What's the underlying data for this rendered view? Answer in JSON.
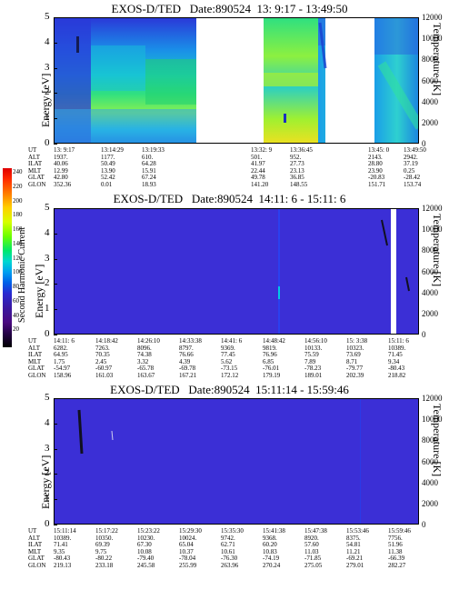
{
  "panels": [
    {
      "title": "EXOS-D/TED   Date:890524  13: 9:17 - 13:49:50",
      "ylabel": "Energy [eV]",
      "y2label": "Temperature [K]",
      "ephemeris_labels": [
        "UT",
        "ALT",
        "ILAT",
        "MLT",
        "GLAT",
        "GLON"
      ],
      "ephemeris_columns": [
        [
          "13: 9:17",
          "1937.",
          "40.06",
          "12.99",
          "42.80",
          "352.36"
        ],
        [
          "13:14:29",
          "1177.",
          "50.49",
          "13.90",
          "52.42",
          "0.01"
        ],
        [
          "13:19:33",
          "610.",
          "64.28",
          "15.91",
          "67.24",
          "18.93"
        ],
        [
          "13:32: 9",
          "501.",
          "41.97",
          "22.44",
          "49.78",
          "141.20"
        ],
        [
          "13:36:45",
          "952.",
          "27.73",
          "23.13",
          "36.85",
          "148.55"
        ],
        [
          "13:45: 0",
          "2143.",
          "28.80",
          "23.90",
          "-20.83",
          "151.71"
        ],
        [
          "13:49:50",
          "2942.",
          "37.19",
          "0.25",
          "-28.42",
          "153.74"
        ]
      ]
    },
    {
      "title": "EXOS-D/TED   Date:890524  14:11: 6 - 15:11: 6",
      "ylabel": "Energy [eV]",
      "y2label": "Temperature [K]",
      "ephemeris_labels": [
        "UT",
        "ALT",
        "ILAT",
        "MLT",
        "GLAT",
        "GLON"
      ],
      "ephemeris_columns": [
        [
          "14:11: 6",
          "6282.",
          "64.95",
          "1.75",
          "-54.97",
          "158.96"
        ],
        [
          "14:18:42",
          "7263.",
          "70.35",
          "2.45",
          "-60.97",
          "161.03"
        ],
        [
          "14:26:10",
          "8096.",
          "74.38",
          "3.32",
          "-65.78",
          "163.67"
        ],
        [
          "14:33:38",
          "8797.",
          "76.66",
          "4.39",
          "-69.78",
          "167.21"
        ],
        [
          "14:41: 6",
          "9369.",
          "77.45",
          "5.62",
          "-73.15",
          "172.12"
        ],
        [
          "14:48:42",
          "9819.",
          "76.96",
          "6.85",
          "-76.01",
          "179.19"
        ],
        [
          "14:56:10",
          "10133.",
          "75.59",
          "7.89",
          "-78.23",
          "189.01"
        ],
        [
          "15: 3:38",
          "10323.",
          "73.69",
          "8.71",
          "-79.77",
          "202.39"
        ],
        [
          "15:11: 6",
          "10389.",
          "71.45",
          "9.34",
          "-80.43",
          "218.82"
        ]
      ]
    },
    {
      "title": "EXOS-D/TED   Date:890524  15:11:14 - 15:59:46",
      "ylabel": "Energy [eV]",
      "y2label": "Temperature [K]",
      "ephemeris_labels": [
        "UT",
        "ALT",
        "ILAT",
        "MLT",
        "GLAT",
        "GLON"
      ],
      "ephemeris_columns": [
        [
          "15:11:14",
          "10389.",
          "71.41",
          "9.35",
          "-80.43",
          "219.13"
        ],
        [
          "15:17:22",
          "10350.",
          "69.39",
          "9.75",
          "-80.22",
          "233.18"
        ],
        [
          "15:23:22",
          "10230.",
          "67.30",
          "10.08",
          "-79.40",
          "245.58"
        ],
        [
          "15:29:30",
          "10024.",
          "65.04",
          "10.37",
          "-78.04",
          "255.99"
        ],
        [
          "15:35:30",
          "9742.",
          "62.71",
          "10.61",
          "-76.30",
          "263.96"
        ],
        [
          "15:41:38",
          "9368.",
          "60.20",
          "10.83",
          "-74.19",
          "270.24"
        ],
        [
          "15:47:38",
          "8920.",
          "57.60",
          "11.03",
          "-71.85",
          "275.05"
        ],
        [
          "15:53:46",
          "8375.",
          "54.81",
          "11.21",
          "-69.21",
          "279.01"
        ],
        [
          "15:59:46",
          "7756.",
          "51.96",
          "11.38",
          "-66.39",
          "282.27"
        ]
      ]
    }
  ],
  "colorbar": {
    "label": "Second Harmonic Current",
    "tick_labels": [
      "240",
      "220",
      "200",
      "180",
      "160",
      "140",
      "120",
      "100",
      "80",
      "60",
      "40",
      "20",
      "0"
    ]
  },
  "chart_data": [
    {
      "type": "heatmap",
      "title": "EXOS-D/TED   Date:890524  13: 9:17 - 13:49:50",
      "ylabel": "Energy [eV]",
      "y2label": "Temperature [K]",
      "ylim": [
        0,
        5
      ],
      "y2lim": [
        0,
        12000
      ],
      "y_ticks": [
        0,
        1,
        2,
        3,
        4,
        5
      ],
      "y2_ticks": [
        0,
        2000,
        4000,
        6000,
        8000,
        10000,
        12000
      ],
      "data_gaps": [
        [
          "13:19:33",
          "13:32: 9"
        ],
        [
          "13:36:45",
          "13:45: 0"
        ]
      ]
    },
    {
      "type": "heatmap",
      "title": "EXOS-D/TED   Date:890524  14:11: 6 - 15:11: 6",
      "ylabel": "Energy [eV]",
      "y2label": "Temperature [K]",
      "ylim": [
        0,
        5
      ],
      "y2lim": [
        0,
        12000
      ],
      "y_ticks": [
        0,
        1,
        2,
        3,
        4,
        5
      ],
      "y2_ticks": [
        0,
        2000,
        4000,
        6000,
        8000,
        10000,
        12000
      ]
    },
    {
      "type": "heatmap",
      "title": "EXOS-D/TED   Date:890524  15:11:14 - 15:59:46",
      "ylabel": "Energy [eV]",
      "y2label": "Temperature [K]",
      "ylim": [
        0,
        5
      ],
      "y2lim": [
        0,
        12000
      ],
      "y_ticks": [
        0,
        1,
        2,
        3,
        4,
        5
      ],
      "y2_ticks": [
        0,
        2000,
        4000,
        6000,
        8000,
        10000,
        12000
      ]
    }
  ],
  "colors": {
    "background_low": "#3b2fd6",
    "colorbar_top": "#d80000",
    "colorbar_bottom": "#000000"
  }
}
